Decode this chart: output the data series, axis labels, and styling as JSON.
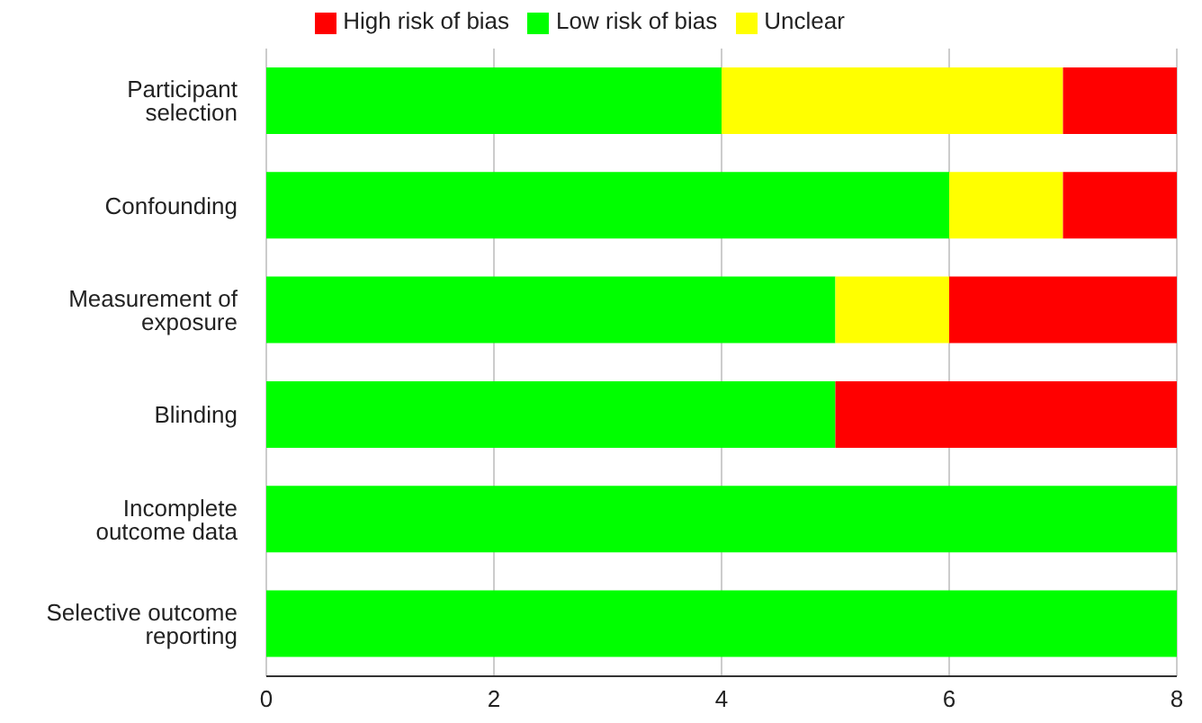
{
  "chart_data": {
    "type": "bar",
    "orientation": "horizontal",
    "stacked": true,
    "categories": [
      "Participant selection",
      "Confounding",
      "Measurement of exposure",
      "Blinding",
      "Incomplete outcome data",
      "Selective outcome reporting"
    ],
    "series": [
      {
        "name": "Low risk of bias",
        "color": "#00ff00",
        "values": [
          4,
          6,
          5,
          5,
          8,
          8
        ]
      },
      {
        "name": "Unclear",
        "color": "#ffff00",
        "values": [
          3,
          1,
          1,
          0,
          0,
          0
        ]
      },
      {
        "name": "High risk of bias",
        "color": "#ff0000",
        "values": [
          1,
          1,
          2,
          3,
          0,
          0
        ]
      }
    ],
    "xlim": [
      0,
      8
    ],
    "xticks": [
      0,
      2,
      4,
      6,
      8
    ],
    "grid": "x",
    "legend": "top"
  }
}
